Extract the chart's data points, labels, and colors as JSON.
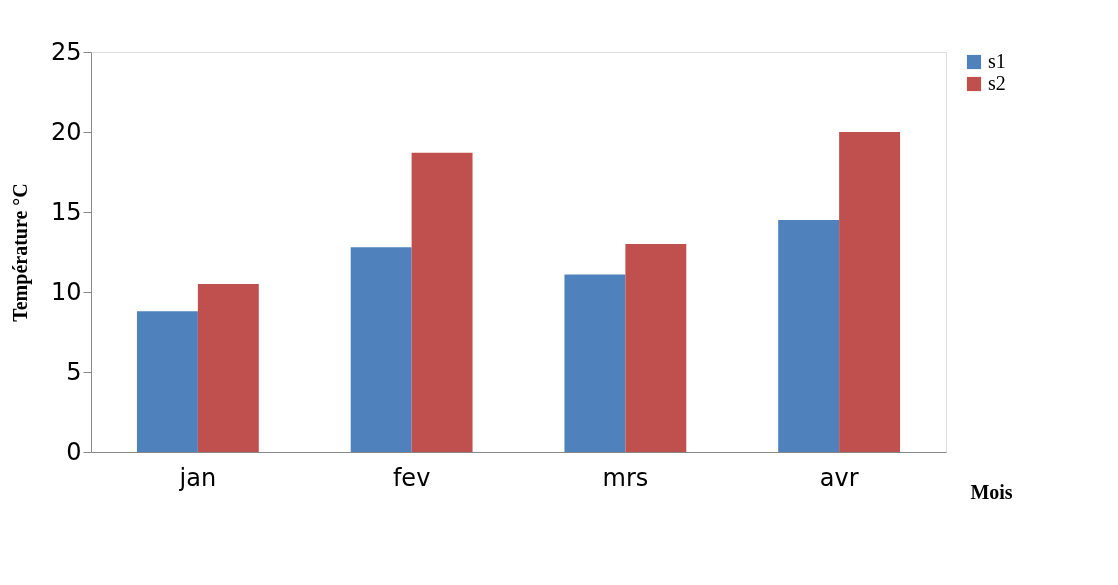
{
  "chart_data": {
    "type": "bar",
    "xlabel": "Mois",
    "ylabel": "Température °C",
    "categories": [
      "jan",
      "fev",
      "mrs",
      "avr"
    ],
    "series": [
      {
        "name": "s1",
        "color": "#4f81bd",
        "values": [
          8.8,
          12.8,
          11.1,
          14.5
        ]
      },
      {
        "name": "s2",
        "color": "#c0504d",
        "values": [
          10.5,
          18.7,
          13.0,
          20.0
        ]
      }
    ],
    "ylim": [
      0,
      25
    ],
    "yticks": [
      0,
      5,
      10,
      15,
      20,
      25
    ],
    "grid": false,
    "legend": "right"
  }
}
